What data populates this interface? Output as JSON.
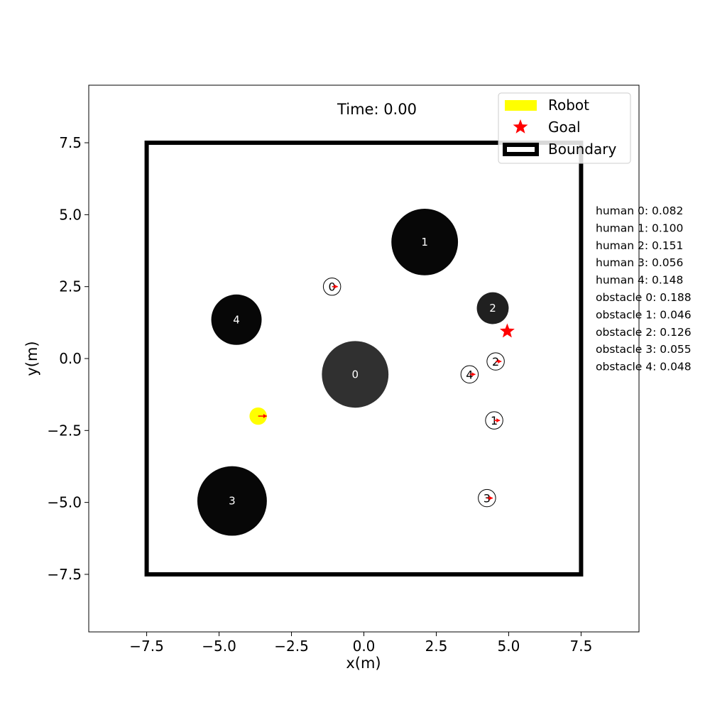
{
  "chart_data": {
    "type": "scatter",
    "title": "Time: 0.00",
    "xlabel": "x(m)",
    "ylabel": "y(m)",
    "xlim": [
      -9.5,
      9.5
    ],
    "ylim": [
      -9.5,
      9.5
    ],
    "xticks": [
      -7.5,
      -5.0,
      -2.5,
      0.0,
      2.5,
      5.0,
      7.5
    ],
    "yticks": [
      -7.5,
      -5.0,
      -2.5,
      0.0,
      2.5,
      5.0,
      7.5
    ],
    "xtick_labels": [
      "−7.5",
      "−5.0",
      "−2.5",
      "0.0",
      "2.5",
      "5.0",
      "7.5"
    ],
    "ytick_labels": [
      "−7.5",
      "−5.0",
      "−2.5",
      "0.0",
      "2.5",
      "5.0",
      "7.5"
    ],
    "grid": false,
    "legend_position": "top-right",
    "legend": [
      {
        "label": "Robot",
        "marker": "patch",
        "color": "#ffff00"
      },
      {
        "label": "Goal",
        "marker": "star",
        "color": "#ff0000"
      },
      {
        "label": "Boundary",
        "marker": "box",
        "color": "#000000"
      }
    ],
    "boundary": {
      "xmin": -7.5,
      "xmax": 7.5,
      "ymin": -7.5,
      "ymax": 7.5,
      "color": "#000000"
    },
    "robot": {
      "x": -3.65,
      "y": -2.0,
      "radius": 0.3,
      "color": "#ffff00",
      "heading": [
        0.3,
        0.0
      ]
    },
    "goal": {
      "x": 4.95,
      "y": 0.95,
      "color": "#ff0000"
    },
    "obstacles": [
      {
        "label": "0",
        "x": -0.3,
        "y": -0.55,
        "radius": 1.15,
        "color": "#303030"
      },
      {
        "label": "1",
        "x": 2.1,
        "y": 4.05,
        "radius": 1.15,
        "color": "#070707"
      },
      {
        "label": "2",
        "x": 4.45,
        "y": 1.75,
        "radius": 0.55,
        "color": "#202020"
      },
      {
        "label": "3",
        "x": -4.55,
        "y": -4.95,
        "radius": 1.2,
        "color": "#070707"
      },
      {
        "label": "4",
        "x": -4.4,
        "y": 1.35,
        "radius": 0.87,
        "color": "#070707"
      }
    ],
    "humans": [
      {
        "label": "0",
        "x": -1.1,
        "y": 2.5,
        "radius": 0.3,
        "heading": [
          0.2,
          0.0
        ]
      },
      {
        "label": "1",
        "x": 4.5,
        "y": -2.15,
        "radius": 0.3,
        "heading": [
          0.2,
          0.0
        ]
      },
      {
        "label": "2",
        "x": 4.55,
        "y": -0.1,
        "radius": 0.3,
        "heading": [
          0.2,
          0.0
        ]
      },
      {
        "label": "3",
        "x": 4.25,
        "y": -4.85,
        "radius": 0.3,
        "heading": [
          0.2,
          0.0
        ]
      },
      {
        "label": "4",
        "x": 3.65,
        "y": -0.55,
        "radius": 0.3,
        "heading": [
          0.2,
          0.0
        ]
      }
    ],
    "heading_color": "#ff0000",
    "annotations": [
      "human 0: 0.082",
      "human 1: 0.100",
      "human 2: 0.151",
      "human 3: 0.056",
      "human 4: 0.148",
      "obstacle 0: 0.188",
      "obstacle 1: 0.046",
      "obstacle 2: 0.126",
      "obstacle 3: 0.055",
      "obstacle 4: 0.048"
    ]
  }
}
